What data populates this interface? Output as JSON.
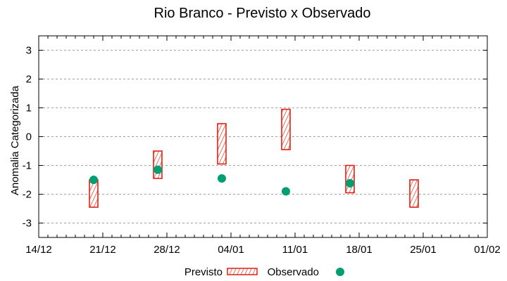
{
  "chart_data": {
    "type": "bar",
    "subtype": "floating-range-bars-with-points",
    "title": "Rio Branco - Previsto x Observado",
    "xlabel": "",
    "ylabel": "Anomalia Categorizada",
    "x_ticks": [
      "14/12",
      "21/12",
      "28/12",
      "04/01",
      "11/01",
      "18/01",
      "25/01",
      "01/02"
    ],
    "y_ticks": [
      3,
      2,
      1,
      0,
      -1,
      -2,
      -3
    ],
    "ylim": [
      -3.5,
      3.5
    ],
    "xlim": [
      "14/12",
      "01/02"
    ],
    "grid": "horizontal dotted",
    "legend_position": "bottom",
    "categories": [
      "20/12",
      "27/12",
      "03/01",
      "10/01",
      "17/01",
      "24/01"
    ],
    "series": [
      {
        "name": "Previsto",
        "kind": "range",
        "color": "#e02010",
        "style": "hatched",
        "ranges": [
          [
            -2.45,
            -1.5
          ],
          [
            -1.45,
            -0.5
          ],
          [
            -0.95,
            0.45
          ],
          [
            -0.45,
            0.95
          ],
          [
            -1.95,
            -1.0
          ],
          [
            -2.45,
            -1.5
          ]
        ]
      },
      {
        "name": "Observado",
        "kind": "point",
        "color": "#009e73",
        "values": [
          -1.5,
          -1.15,
          -1.45,
          -1.9,
          -1.62,
          null
        ]
      }
    ]
  },
  "legend": {
    "previsto_label": "Previsto",
    "observado_label": "Observado"
  }
}
